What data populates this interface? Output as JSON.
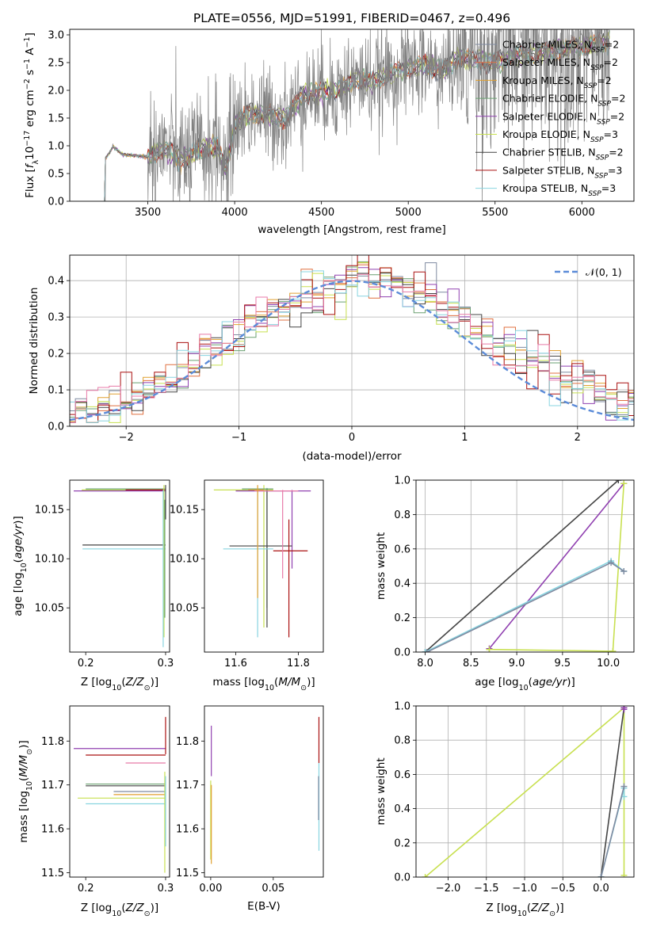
{
  "colors": {
    "chabrier_miles": "#7f8aa0",
    "salpeter_miles": "#e07040",
    "kroupa_miles": "#e0a030",
    "chabrier_elodie": "#6aa070",
    "salpeter_elodie": "#9040b0",
    "kroupa_elodie": "#c8e050",
    "chabrier_stelib": "#444444",
    "salpeter_stelib": "#aa1010",
    "kroupa_stelib": "#88d4e0",
    "pink": "#e87aa8",
    "normal_curve": "#5b8bd8"
  },
  "chart_data": [
    {
      "id": "spectrum",
      "type": "line",
      "title": "PLATE=0556, MJD=51991, FIBERID=0467, z=0.496",
      "xlabel": "wavelength [Angstrom, rest frame]",
      "ylabel": "Flux [fλ10⁻¹⁷ erg cm⁻² s⁻¹ A⁻¹]",
      "xlim": [
        3050,
        6300
      ],
      "ylim": [
        0,
        3.1
      ],
      "xticks": [
        3500,
        4000,
        4500,
        5000,
        5500,
        6000
      ],
      "xtick_labels": [
        "3500",
        "4000",
        "4500",
        "5000",
        "5500",
        "6000"
      ],
      "yticks": [
        0,
        0.5,
        1,
        1.5,
        2,
        2.5,
        3
      ],
      "ytick_labels": [
        "0.0",
        "0.5",
        "1.0",
        "1.5",
        "2.0",
        "2.5",
        "3.0"
      ],
      "legend_position": "top-right",
      "legend": [
        {
          "label": "Chabrier MILES, N",
          "sub": "SSP",
          "tail": "=2",
          "color": "#7f8aa0"
        },
        {
          "label": "Salpeter MILES, N",
          "sub": "SSP",
          "tail": "=2",
          "color": "#e07040"
        },
        {
          "label": "Kroupa MILES, N",
          "sub": "SSP",
          "tail": "=2",
          "color": "#e0a030"
        },
        {
          "label": "Chabrier ELODIE, N",
          "sub": "SSP",
          "tail": "=2",
          "color": "#6aa070"
        },
        {
          "label": "Salpeter ELODIE, N",
          "sub": "SSP",
          "tail": "=2",
          "color": "#9040b0"
        },
        {
          "label": "Kroupa ELODIE, N",
          "sub": "SSP",
          "tail": "=3",
          "color": "#c8e050"
        },
        {
          "label": "Chabrier STELIB, N",
          "sub": "SSP",
          "tail": "=2",
          "color": "#444444"
        },
        {
          "label": "Salpeter STELIB, N",
          "sub": "SSP",
          "tail": "=3",
          "color": "#aa1010"
        },
        {
          "label": "Kroupa STELIB, N",
          "sub": "SSP",
          "tail": "=3",
          "color": "#88d4e0"
        }
      ],
      "model_continuum": [
        [
          3250,
          0.0
        ],
        [
          3255,
          0.78
        ],
        [
          3280,
          0.88
        ],
        [
          3300,
          0.98
        ],
        [
          3350,
          0.85
        ],
        [
          3400,
          0.83
        ],
        [
          3450,
          0.82
        ],
        [
          3500,
          0.8
        ],
        [
          3600,
          0.95
        ],
        [
          3700,
          0.75
        ],
        [
          3800,
          0.9
        ],
        [
          3900,
          1.0
        ],
        [
          3950,
          0.55
        ],
        [
          4000,
          1.4
        ],
        [
          4100,
          1.6
        ],
        [
          4200,
          1.55
        ],
        [
          4300,
          1.5
        ],
        [
          4400,
          1.95
        ],
        [
          4500,
          1.95
        ],
        [
          4600,
          2.0
        ],
        [
          4700,
          2.2
        ],
        [
          4800,
          2.15
        ],
        [
          4900,
          2.3
        ],
        [
          5000,
          2.4
        ],
        [
          5100,
          2.45
        ],
        [
          5200,
          2.35
        ],
        [
          5300,
          2.6
        ],
        [
          5400,
          2.55
        ],
        [
          5500,
          2.5
        ],
        [
          5600,
          2.6
        ],
        [
          5700,
          2.65
        ],
        [
          5800,
          2.7
        ],
        [
          5900,
          2.75
        ],
        [
          6000,
          2.8
        ],
        [
          6100,
          2.85
        ],
        [
          6160,
          2.9
        ]
      ],
      "observed_range": [
        3250,
        6160
      ]
    },
    {
      "id": "residuals",
      "type": "line",
      "xlabel": "(data-model)/error",
      "ylabel": "Normed distribution",
      "xlim": [
        -2.5,
        2.5
      ],
      "ylim": [
        0,
        0.47
      ],
      "xticks": [
        -2,
        -1,
        0,
        1,
        2
      ],
      "xtick_labels": [
        "−2",
        "−1",
        "0",
        "1",
        "2"
      ],
      "yticks": [
        0,
        0.1,
        0.2,
        0.3,
        0.4
      ],
      "ytick_labels": [
        "0.0",
        "0.1",
        "0.2",
        "0.3",
        "0.4"
      ],
      "grid": true,
      "legend_position": "top-right",
      "legend": [
        {
          "label": "𝒩(0, 1)",
          "color": "#5b8bd8"
        }
      ],
      "normal": {
        "mean": 0,
        "sigma": 1
      }
    },
    {
      "id": "age-vs-Z",
      "type": "scatter",
      "xlabel": "Z [log₁₀(Z/Z⊙)]",
      "ylabel": "age  [log₁₀(age/yr)]",
      "xlim": [
        0.18,
        0.305
      ],
      "ylim": [
        10.005,
        10.18
      ],
      "xticks": [
        0.2,
        0.3
      ],
      "xtick_labels": [
        "0.2",
        "0.3"
      ],
      "yticks": [
        10.05,
        10.1,
        10.15
      ],
      "ytick_labels": [
        "10.05",
        "10.10",
        "10.15"
      ],
      "segments_h": [
        {
          "y": 10.169,
          "x0": 0.185,
          "x1": 0.3,
          "color": "#9040b0"
        },
        {
          "y": 10.17,
          "x0": 0.195,
          "x1": 0.3,
          "color": "#c8e050"
        },
        {
          "y": 10.171,
          "x0": 0.2,
          "x1": 0.3,
          "color": "#6aa070"
        },
        {
          "y": 10.17,
          "x0": 0.25,
          "x1": 0.3,
          "color": "#aa1010"
        },
        {
          "y": 10.114,
          "x0": 0.196,
          "x1": 0.3,
          "color": "#444444"
        },
        {
          "y": 10.11,
          "x0": 0.196,
          "x1": 0.3,
          "color": "#88d4e0"
        }
      ],
      "segments_v": [
        {
          "x": 0.298,
          "y0": 10.02,
          "y1": 10.175,
          "color": "#c8e050"
        },
        {
          "x": 0.299,
          "y0": 10.04,
          "y1": 10.16,
          "color": "#6aa070"
        },
        {
          "x": 0.3,
          "y0": 10.14,
          "y1": 10.175,
          "color": "#444444"
        },
        {
          "x": 0.297,
          "y0": 10.01,
          "y1": 10.17,
          "color": "#88d4e0"
        }
      ]
    },
    {
      "id": "age-vs-mass",
      "type": "scatter",
      "xlabel": "mass [log₁₀(M/M⊙)]",
      "xlim": [
        11.5,
        11.88
      ],
      "ylim": [
        10.005,
        10.18
      ],
      "xticks": [
        11.6,
        11.8
      ],
      "xtick_labels": [
        "11.6",
        "11.8"
      ],
      "yticks": [
        10.05,
        10.1,
        10.15
      ],
      "ytick_labels": [
        "10.05",
        "10.10",
        "10.15"
      ],
      "crosses": [
        {
          "x": 11.78,
          "y": 10.169,
          "dx": [
            11.6,
            11.84
          ],
          "dy": [
            10.09,
            10.17
          ],
          "color": "#9040b0"
        },
        {
          "x": 11.69,
          "y": 10.17,
          "dx": [
            11.53,
            11.72
          ],
          "dy": [
            10.03,
            10.175
          ],
          "color": "#c8e050"
        },
        {
          "x": 11.7,
          "y": 10.171,
          "dx": [
            11.62,
            11.72
          ],
          "dy": [
            10.05,
            10.172
          ],
          "color": "#6aa070"
        },
        {
          "x": 11.7,
          "y": 10.113,
          "dx": [
            11.58,
            11.78
          ],
          "dy": [
            10.03,
            10.17
          ],
          "color": "#444444"
        },
        {
          "x": 11.67,
          "y": 10.11,
          "dx": [
            11.56,
            11.72
          ],
          "dy": [
            10.02,
            10.17
          ],
          "color": "#88d4e0"
        },
        {
          "x": 11.77,
          "y": 10.108,
          "dx": [
            11.72,
            11.83
          ],
          "dy": [
            10.02,
            10.14
          ],
          "color": "#aa1010"
        },
        {
          "x": 11.75,
          "y": 10.169,
          "dx": [
            11.66,
            11.8
          ],
          "dy": [
            10.08,
            10.17
          ],
          "color": "#e87aa8"
        },
        {
          "x": 11.67,
          "y": 10.17,
          "dx": [
            11.64,
            11.69
          ],
          "dy": [
            10.06,
            10.175
          ],
          "color": "#e0a030"
        }
      ]
    },
    {
      "id": "weight-vs-age",
      "type": "line",
      "xlabel": "age  [log₁₀(age/yr)]",
      "ylabel": "mass weight",
      "xlim": [
        7.9,
        10.28
      ],
      "ylim": [
        0,
        1
      ],
      "xticks": [
        8.0,
        8.5,
        9.0,
        9.5,
        10.0
      ],
      "xtick_labels": [
        "8.0",
        "8.5",
        "9.0",
        "9.5",
        "10.0"
      ],
      "yticks": [
        0,
        0.2,
        0.4,
        0.6,
        0.8,
        1.0
      ],
      "ytick_labels": [
        "0.0",
        "0.2",
        "0.4",
        "0.6",
        "0.8",
        "1.0"
      ],
      "grid": true,
      "series": [
        {
          "color": "#444444",
          "points": [
            [
              8.0,
              0.0
            ],
            [
              10.11,
              1.0
            ]
          ]
        },
        {
          "color": "#9040b0",
          "points": [
            [
              8.7,
              0.02
            ],
            [
              10.17,
              0.98
            ]
          ]
        },
        {
          "color": "#c8e050",
          "points": [
            [
              8.7,
              0.015
            ],
            [
              10.05,
              0.005
            ],
            [
              10.17,
              0.98
            ]
          ]
        },
        {
          "color": "#88d4e0",
          "points": [
            [
              8.0,
              0.0
            ],
            [
              10.03,
              0.53
            ],
            [
              10.17,
              0.47
            ]
          ]
        },
        {
          "color": "#7f8aa0",
          "points": [
            [
              8.02,
              0.0
            ],
            [
              10.03,
              0.52
            ],
            [
              10.17,
              0.47
            ]
          ]
        }
      ]
    },
    {
      "id": "mass-vs-Z",
      "type": "scatter",
      "xlabel": "Z [log₁₀(Z/Z⊙)]",
      "ylabel": "mass [log₁₀(M/M⊙)]",
      "xlim": [
        0.18,
        0.305
      ],
      "ylim": [
        11.49,
        11.88
      ],
      "xticks": [
        0.2,
        0.3
      ],
      "xtick_labels": [
        "0.2",
        "0.3"
      ],
      "yticks": [
        11.5,
        11.6,
        11.7,
        11.8
      ],
      "ytick_labels": [
        "11.5",
        "11.6",
        "11.7",
        "11.8"
      ],
      "segments_h": [
        {
          "y": 11.783,
          "x0": 0.185,
          "x1": 0.3,
          "color": "#9040b0"
        },
        {
          "y": 11.768,
          "x0": 0.2,
          "x1": 0.3,
          "color": "#aa1010"
        },
        {
          "y": 11.75,
          "x0": 0.25,
          "x1": 0.3,
          "color": "#e87aa8"
        },
        {
          "y": 11.702,
          "x0": 0.2,
          "x1": 0.3,
          "color": "#6aa070"
        },
        {
          "y": 11.698,
          "x0": 0.2,
          "x1": 0.3,
          "color": "#444444"
        },
        {
          "y": 11.685,
          "x0": 0.235,
          "x1": 0.3,
          "color": "#7f8aa0"
        },
        {
          "y": 11.678,
          "x0": 0.235,
          "x1": 0.3,
          "color": "#e0a030"
        },
        {
          "y": 11.67,
          "x0": 0.19,
          "x1": 0.3,
          "color": "#c8e050"
        },
        {
          "y": 11.657,
          "x0": 0.2,
          "x1": 0.3,
          "color": "#88d4e0"
        }
      ],
      "segments_v": [
        {
          "x": 0.3,
          "y0": 11.77,
          "y1": 11.855,
          "color": "#aa1010"
        },
        {
          "x": 0.299,
          "y0": 11.5,
          "y1": 11.73,
          "color": "#c8e050"
        },
        {
          "x": 0.3,
          "y0": 11.56,
          "y1": 11.72,
          "color": "#88d4e0"
        }
      ]
    },
    {
      "id": "mass-vs-ebv",
      "type": "scatter",
      "xlabel": "E(B-V)",
      "xlim": [
        -0.005,
        0.09
      ],
      "ylim": [
        11.49,
        11.88
      ],
      "xticks": [
        0.0,
        0.05
      ],
      "xtick_labels": [
        "0.00",
        "0.05"
      ],
      "yticks": [
        11.5,
        11.6,
        11.7,
        11.8
      ],
      "ytick_labels": [
        "11.5",
        "11.6",
        "11.7",
        "11.8"
      ],
      "segments_v": [
        {
          "x": 0.0005,
          "y0": 11.72,
          "y1": 11.835,
          "color": "#9040b0"
        },
        {
          "x": 0.0,
          "y0": 11.53,
          "y1": 11.71,
          "color": "#c8e050"
        },
        {
          "x": 0.0005,
          "y0": 11.52,
          "y1": 11.7,
          "color": "#e0a030"
        },
        {
          "x": 0.0865,
          "y0": 11.75,
          "y1": 11.855,
          "color": "#aa1010"
        },
        {
          "x": 0.0865,
          "y0": 11.55,
          "y1": 11.75,
          "color": "#88d4e0"
        },
        {
          "x": 0.0862,
          "y0": 11.62,
          "y1": 11.72,
          "color": "#7f8aa0"
        }
      ]
    },
    {
      "id": "weight-vs-Z",
      "type": "line",
      "xlabel": "Z [log₁₀(Z/Z⊙)]",
      "ylabel": "mass weight",
      "xlim": [
        -2.42,
        0.43
      ],
      "ylim": [
        0,
        1
      ],
      "xticks": [
        -2.0,
        -1.5,
        -1.0,
        -0.5,
        0.0
      ],
      "xtick_labels": [
        "−2.0",
        "−1.5",
        "−1.0",
        "−0.5",
        "0.0"
      ],
      "yticks": [
        0,
        0.2,
        0.4,
        0.6,
        0.8,
        1.0
      ],
      "ytick_labels": [
        "0.0",
        "0.2",
        "0.4",
        "0.6",
        "0.8",
        "1.0"
      ],
      "grid": true,
      "series": [
        {
          "color": "#c8e050",
          "points": [
            [
              -2.3,
              0.0
            ],
            [
              0.3,
              0.99
            ],
            [
              0.3,
              0.01
            ]
          ]
        },
        {
          "color": "#444444",
          "points": [
            [
              0.0,
              0.0
            ],
            [
              0.3,
              0.99
            ]
          ]
        },
        {
          "color": "#88d4e0",
          "points": [
            [
              0.0,
              0.0
            ],
            [
              0.3,
              0.52
            ],
            [
              0.3,
              0.47
            ]
          ]
        },
        {
          "color": "#7f8aa0",
          "points": [
            [
              0.0,
              0.0
            ],
            [
              0.3,
              0.53
            ]
          ]
        },
        {
          "color": "#9040b0",
          "points": [
            [
              0.3,
              0.98
            ],
            [
              0.3,
              0.99
            ]
          ]
        }
      ]
    }
  ]
}
